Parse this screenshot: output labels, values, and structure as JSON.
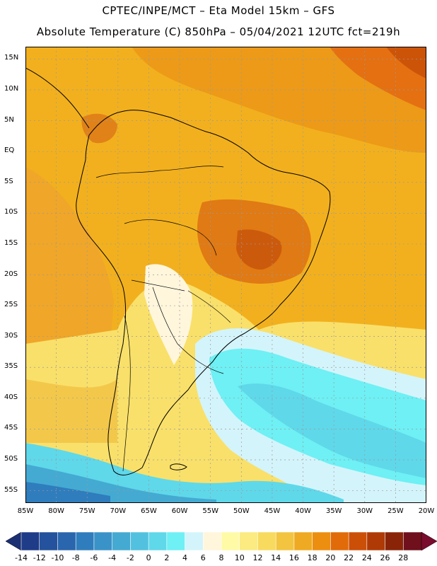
{
  "title_line1": "CPTEC/INPE/MCT –  Eta Model 15km – GFS",
  "title_line2": "Absolute Temperature (C) 850hPa – 05/04/2021 12UTC fct=219h",
  "lat_labels": [
    "15N",
    "10N",
    "5N",
    "EQ",
    "5S",
    "10S",
    "15S",
    "20S",
    "25S",
    "30S",
    "35S",
    "40S",
    "45S",
    "50S",
    "55S"
  ],
  "lon_labels": [
    "85W",
    "80W",
    "75W",
    "70W",
    "65W",
    "60W",
    "55W",
    "50W",
    "45W",
    "40W",
    "35W",
    "30W",
    "25W",
    "20W"
  ],
  "colorbar": {
    "labels": [
      "-14",
      "-12",
      "-10",
      "-8",
      "-6",
      "-4",
      "-2",
      "0",
      "2",
      "4",
      "6",
      "8",
      "10",
      "12",
      "14",
      "16",
      "18",
      "20",
      "22",
      "24",
      "26",
      "28"
    ],
    "colors": [
      "#1f3c88",
      "#24529c",
      "#2a66ad",
      "#2f7dbd",
      "#3a93c8",
      "#44aad2",
      "#52c1df",
      "#5fd8ea",
      "#6ef0f4",
      "#d4f4fb",
      "#fff6dc",
      "#fffaa5",
      "#fbeb80",
      "#f8da5e",
      "#f2c440",
      "#eeaa22",
      "#ec8e10",
      "#e06b08",
      "#cc4f08",
      "#b03a06",
      "#8a2408",
      "#70101c"
    ],
    "under_color": "#1b2f73",
    "over_color": "#7a0c2e"
  },
  "chart_data": {
    "type": "heatmap",
    "variable": "Absolute Temperature (C) 850hPa",
    "run": "05/04/2021 12UTC",
    "forecast_hour": "fct=219h",
    "lon_range": [
      -85,
      -20
    ],
    "lat_range": [
      -57,
      17
    ],
    "regions": [
      {
        "name": "Caribbean / northern Atlantic",
        "value_range": [
          18,
          22
        ]
      },
      {
        "name": "northeast Atlantic corner",
        "value_range": [
          22,
          24
        ]
      },
      {
        "name": "Amazon basin / northern continent",
        "value_range": [
          16,
          20
        ]
      },
      {
        "name": "central Brazil",
        "value_range": [
          20,
          24
        ]
      },
      {
        "name": "Pacific off Peru/Chile",
        "value_range": [
          14,
          18
        ]
      },
      {
        "name": "Chaco / northern Argentina",
        "value_range": [
          8,
          12
        ]
      },
      {
        "name": "Patagonia",
        "value_range": [
          8,
          14
        ]
      },
      {
        "name": "South Atlantic cold tongue",
        "value_range": [
          0,
          6
        ]
      },
      {
        "name": "Southern Ocean near 55S",
        "value_range": [
          -8,
          0
        ]
      }
    ]
  }
}
